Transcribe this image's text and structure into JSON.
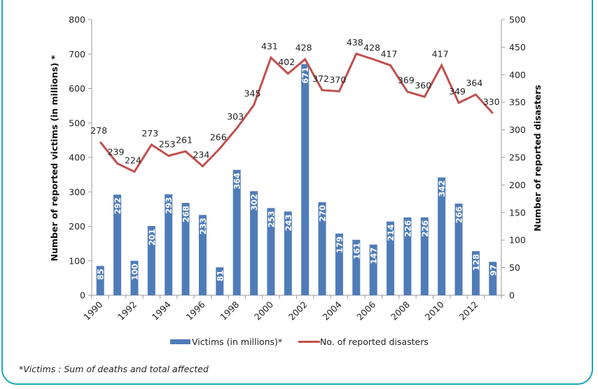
{
  "chart_data": {
    "type": "bar+line",
    "title": "",
    "categories": [
      "1990",
      "1991",
      "1992",
      "1993",
      "1994",
      "1995",
      "1996",
      "1997",
      "1998",
      "1999",
      "2000",
      "2001",
      "2002",
      "2003",
      "2004",
      "2005",
      "2006",
      "2007",
      "2008",
      "2009",
      "2010",
      "2011",
      "2012",
      "2013"
    ],
    "x_tick_labels": [
      "1990",
      "1992",
      "1994",
      "1996",
      "1998",
      "2000",
      "2002",
      "2004",
      "2006",
      "2008",
      "2010",
      "2012"
    ],
    "series": [
      {
        "name": "Victims (in millions)*",
        "type": "bar",
        "axis": "left",
        "color": "#4f7cb8",
        "values": [
          85,
          292,
          100,
          201,
          293,
          268,
          233,
          81,
          364,
          302,
          253,
          243,
          671,
          270,
          179,
          161,
          147,
          214,
          226,
          226,
          342,
          266,
          128,
          97
        ]
      },
      {
        "name": "No. of reported disasters",
        "type": "line",
        "axis": "right",
        "color": "#c0504d",
        "values": [
          278,
          239,
          224,
          273,
          253,
          261,
          234,
          266,
          303,
          345,
          431,
          402,
          428,
          372,
          370,
          438,
          428,
          417,
          369,
          360,
          417,
          349,
          364,
          330
        ]
      }
    ],
    "y_left": {
      "label": "Number of reported victims (in millions) *",
      "range": [
        0,
        800
      ],
      "ticks": [
        0,
        100,
        200,
        300,
        400,
        500,
        600,
        700,
        800
      ]
    },
    "y_right": {
      "label": "Number of reported disasters",
      "range": [
        0,
        500
      ],
      "ticks": [
        0,
        50,
        100,
        150,
        200,
        250,
        300,
        350,
        400,
        450,
        500
      ]
    },
    "legend": {
      "position": "bottom",
      "items": [
        {
          "label": "Victims (in millions)*",
          "kind": "bar",
          "color": "#4f7cb8"
        },
        {
          "label": "No. of reported disasters",
          "kind": "line",
          "color": "#c0504d"
        }
      ]
    },
    "grid": false,
    "footnote": "*Victims : Sum of deaths and total affected"
  },
  "colors": {
    "frame": "#17a9b8",
    "axis": "#9a9a9a"
  }
}
